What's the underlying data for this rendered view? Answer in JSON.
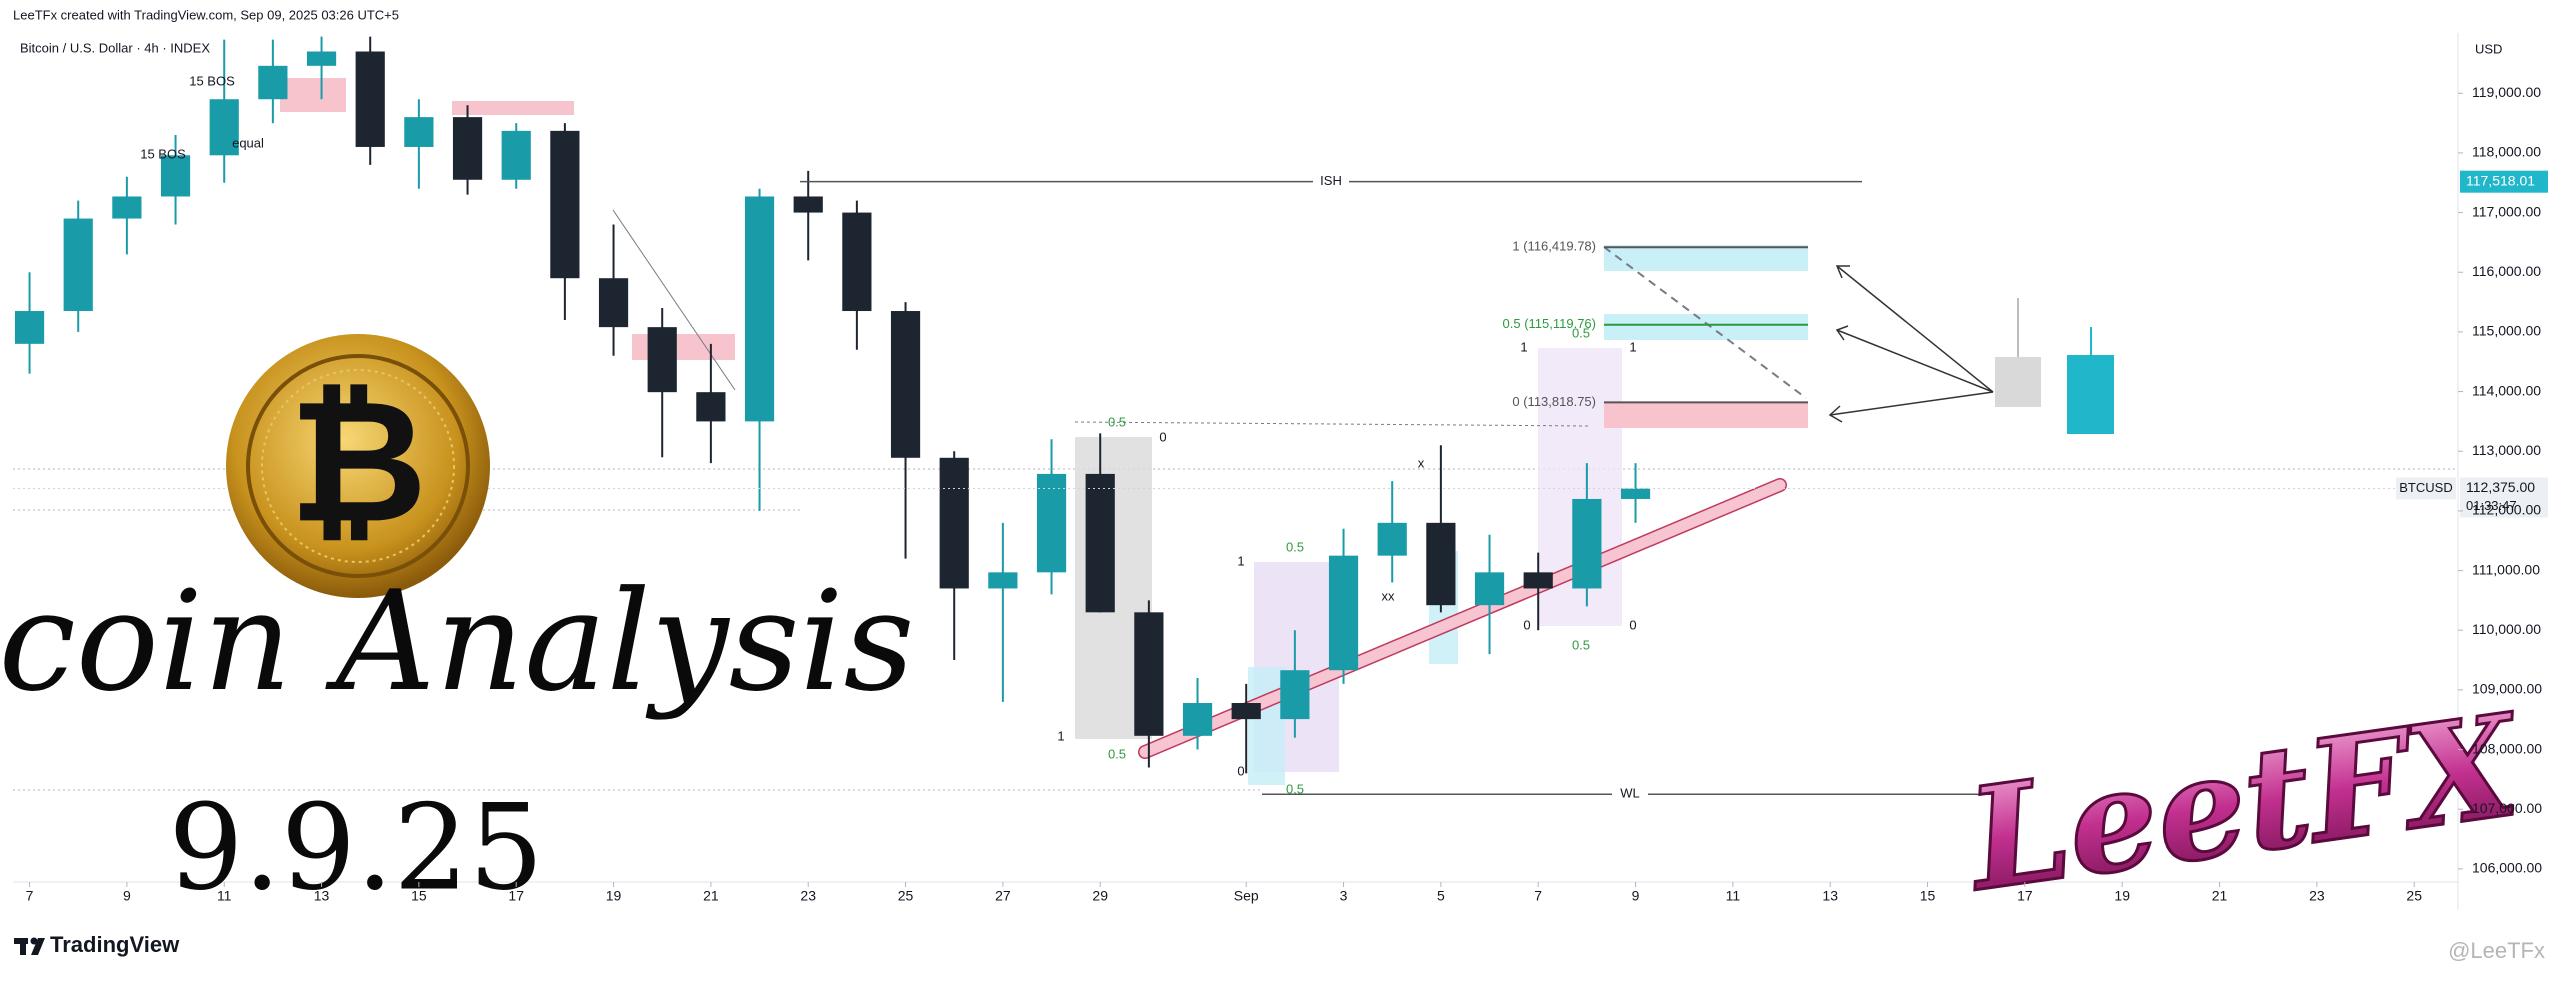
{
  "header": {
    "credit": "LeeTFx created with TradingView.com, Sep 09, 2025 03:26 UTC+5",
    "brand": "TradingView",
    "watermark": "@LeeTFx"
  },
  "overlay": {
    "title": "Bitcoin Analysis",
    "date": "9.9.25",
    "logo": "LeetFX",
    "coin_symbol": "₿"
  },
  "chart_data": {
    "type": "candlestick",
    "title": "Bitcoin / U.S. Dollar · 4h · INDEX",
    "currency": "USD",
    "up_color": "#1a9ba8",
    "down_color": "#1c2530",
    "x": [
      0,
      1,
      2,
      3,
      4,
      5,
      6,
      7,
      8,
      9,
      10,
      11,
      12,
      13,
      14,
      15,
      16,
      17,
      18,
      19,
      20,
      21,
      22,
      23,
      24,
      25,
      26,
      27,
      28,
      29,
      30,
      31,
      32,
      33
    ],
    "open": [
      114800,
      115350,
      116900,
      117270,
      117960,
      118900,
      119460,
      119700,
      118100,
      118600,
      117550,
      118370,
      115900,
      115080,
      113990,
      113500,
      117270,
      117000,
      115350,
      112890,
      110700,
      110970,
      112620,
      110300,
      108230,
      108780,
      108510,
      109330,
      111250,
      111800,
      110420,
      110970,
      110700,
      112200
    ],
    "high": [
      116000,
      117200,
      117600,
      118300,
      119900,
      119900,
      119950,
      119950,
      118900,
      118800,
      118500,
      118500,
      116800,
      115400,
      114800,
      117400,
      117700,
      117200,
      115500,
      113000,
      111800,
      113200,
      113300,
      110500,
      109200,
      109100,
      110000,
      111700,
      112500,
      113100,
      111600,
      111300,
      112800,
      112800
    ],
    "low": [
      114300,
      115000,
      116300,
      116800,
      117500,
      118500,
      118900,
      117800,
      117400,
      117300,
      117400,
      115200,
      114600,
      112900,
      112800,
      112000,
      116200,
      114700,
      111200,
      109500,
      108800,
      110600,
      110300,
      107700,
      108000,
      107600,
      108200,
      109100,
      110800,
      110300,
      109600,
      110000,
      110400,
      111800
    ],
    "close": [
      115350,
      116900,
      117270,
      117960,
      118900,
      119460,
      119700,
      118100,
      118600,
      117550,
      118370,
      115900,
      115080,
      113990,
      113500,
      117270,
      117000,
      115350,
      112890,
      110700,
      110970,
      112620,
      110300,
      108230,
      108780,
      108510,
      109330,
      111250,
      111800,
      110420,
      110970,
      110700,
      112200,
      112375
    ],
    "xlim": [
      -0.34,
      49.9
    ],
    "ylim": [
      105780,
      120010
    ],
    "xticks": [
      {
        "value": 0,
        "label": "7"
      },
      {
        "value": 2,
        "label": "9"
      },
      {
        "value": 4,
        "label": "11"
      },
      {
        "value": 6,
        "label": "13"
      },
      {
        "value": 8,
        "label": "15"
      },
      {
        "value": 10,
        "label": "17"
      },
      {
        "value": 12,
        "label": "19"
      },
      {
        "value": 14,
        "label": "21"
      },
      {
        "value": 16,
        "label": "23"
      },
      {
        "value": 18,
        "label": "25"
      },
      {
        "value": 20,
        "label": "27"
      },
      {
        "value": 22,
        "label": "29"
      },
      {
        "value": 25,
        "label": "Sep"
      },
      {
        "value": 27,
        "label": "3"
      },
      {
        "value": 29,
        "label": "5"
      },
      {
        "value": 31,
        "label": "7"
      },
      {
        "value": 33,
        "label": "9"
      },
      {
        "value": 35,
        "label": "11"
      },
      {
        "value": 37,
        "label": "13"
      },
      {
        "value": 39,
        "label": "15"
      },
      {
        "value": 41,
        "label": "17"
      },
      {
        "value": 43,
        "label": "19"
      },
      {
        "value": 45,
        "label": "21"
      },
      {
        "value": 47,
        "label": "23"
      },
      {
        "value": 49,
        "label": "25"
      }
    ],
    "yticks": [
      {
        "value": 106000,
        "label": "106,000.00"
      },
      {
        "value": 107000,
        "label": "107,000.00"
      },
      {
        "value": 108000,
        "label": "108,000.00"
      },
      {
        "value": 109000,
        "label": "109,000.00"
      },
      {
        "value": 110000,
        "label": "110,000.00"
      },
      {
        "value": 111000,
        "label": "111,000.00"
      },
      {
        "value": 112000,
        "label": "112,000.00"
      },
      {
        "value": 113000,
        "label": "113,000.00"
      },
      {
        "value": 114000,
        "label": "114,000.00"
      },
      {
        "value": 115000,
        "label": "115,000.00"
      },
      {
        "value": 116000,
        "label": "116,000.00"
      },
      {
        "value": 117000,
        "label": "117,000.00"
      },
      {
        "value": 118000,
        "label": "118,000.00"
      },
      {
        "value": 119000,
        "label": "119,000.00"
      }
    ],
    "levels": [
      {
        "value": 117518.01,
        "label": "ISH"
      },
      {
        "value": 107250,
        "label": "WL"
      }
    ],
    "fib_levels": [
      {
        "value": 116419.78,
        "label": "1 (116,419.78)"
      },
      {
        "value": 115119.76,
        "label": "0.5 (115,119.76)"
      },
      {
        "value": 113818.75,
        "label": "0 (113,818.75)"
      }
    ],
    "price_markers": [
      {
        "value": 117518.01,
        "label": "117,518.01"
      },
      {
        "value": 112375,
        "label": "112,375.00",
        "symbol": "BTCUSD",
        "timer": "01:33:47"
      }
    ],
    "annotations": [
      "15 BOS",
      "15 BOS",
      "equal",
      "0.5",
      "0",
      "1",
      "0.5",
      "1",
      "0.5",
      "0",
      "0.5",
      "1",
      "0.5",
      "1",
      "0",
      "0",
      "0.5",
      "xx",
      "x"
    ]
  }
}
